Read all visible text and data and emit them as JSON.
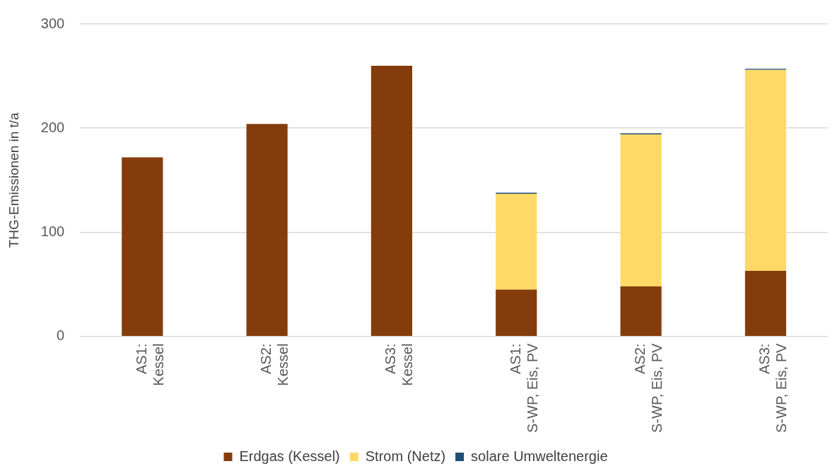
{
  "chart_data": {
    "type": "bar",
    "stacked": true,
    "ylabel": "THG-Emissionen in t/a",
    "categories": [
      "AS1: Kessel",
      "AS2: Kessel",
      "AS3: Kessel",
      "AS1: S-WP, Eis, PV",
      "AS2: S-WP, Eis, PV",
      "AS3: S-WP, Eis, PV"
    ],
    "series": [
      {
        "name": "Erdgas (Kessel)",
        "color": "#843c0c",
        "values": [
          172,
          204,
          260,
          45,
          48,
          63
        ]
      },
      {
        "name": "Strom (Netz)",
        "color": "#ffd966",
        "values": [
          null,
          null,
          null,
          92,
          146,
          193
        ]
      },
      {
        "name": "solare Umweltenergie",
        "color": "#1f4e79",
        "values": [
          null,
          null,
          null,
          1,
          1,
          1
        ]
      }
    ],
    "ylim": [
      0,
      300
    ],
    "yticks": [
      0,
      100,
      200,
      300
    ],
    "grid": "y",
    "legend": "bottom"
  }
}
